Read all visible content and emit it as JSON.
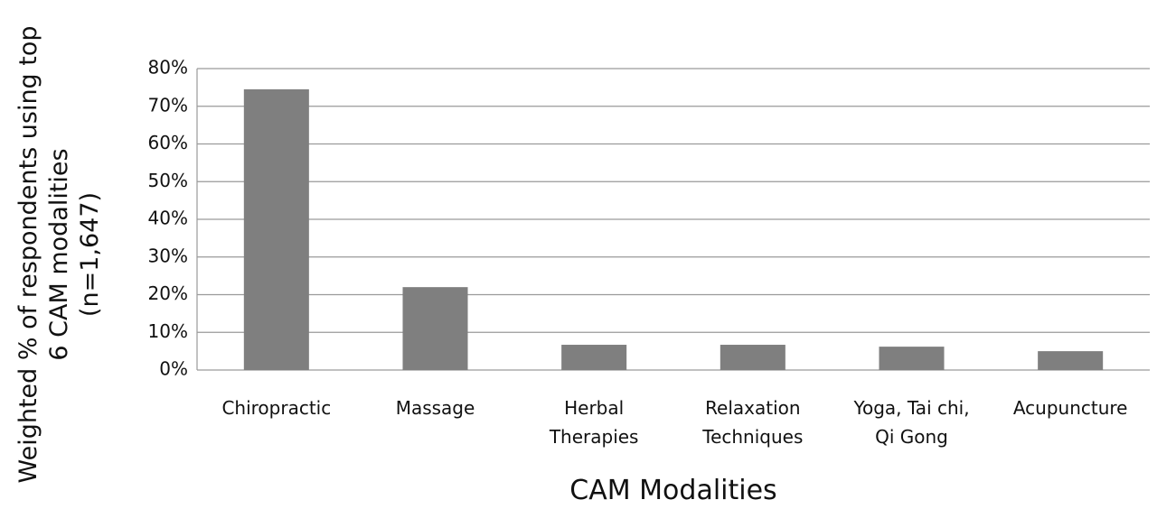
{
  "chart_data": {
    "type": "bar",
    "y_label": "Weighted % of respondents using top\n6 CAM modalities\n(n=1,647)",
    "x_label": "CAM Modalities",
    "categories": [
      "Chiropractic",
      "Massage",
      "Herbal\nTherapies",
      "Relaxation\nTechniques",
      "Yoga, Tai chi,\nQi Gong",
      "Acupuncture"
    ],
    "values": [
      74.5,
      22,
      6.7,
      6.7,
      6.2,
      5
    ],
    "color": "#7f7f7f",
    "ylim": [
      0,
      80
    ],
    "yticks": [
      {
        "value": 0,
        "label": "0%"
      },
      {
        "value": 10,
        "label": "10%"
      },
      {
        "value": 20,
        "label": "20%"
      },
      {
        "value": 30,
        "label": "30%"
      },
      {
        "value": 40,
        "label": "40%"
      },
      {
        "value": 50,
        "label": "50%"
      },
      {
        "value": 60,
        "label": "60%"
      },
      {
        "value": 70,
        "label": "70%"
      },
      {
        "value": 80,
        "label": "80%"
      }
    ],
    "grid": true
  }
}
